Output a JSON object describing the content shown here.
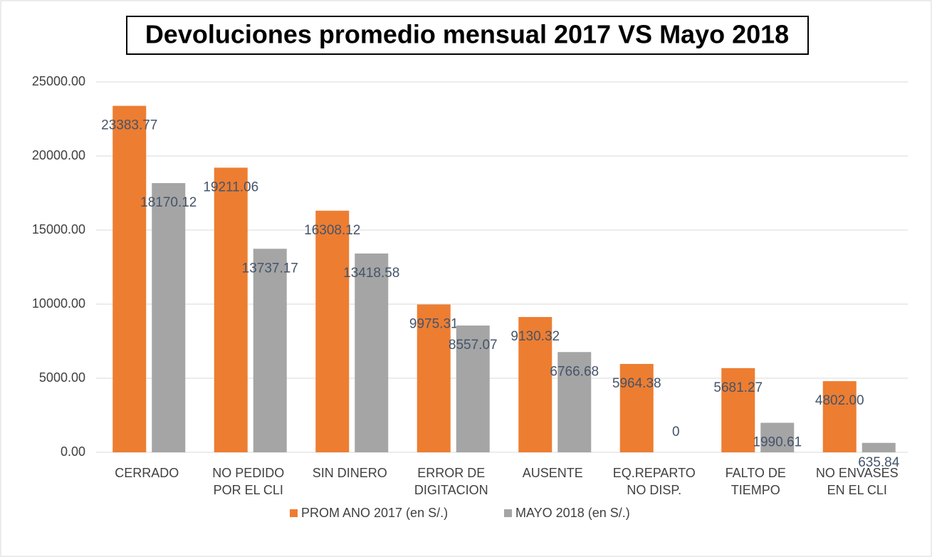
{
  "chart_data": {
    "type": "bar",
    "title": "Devoluciones promedio mensual 2017 VS Mayo 2018",
    "categories": [
      "CERRADO",
      "NO PEDIDO\nPOR EL CLI",
      "SIN DINERO",
      "ERROR DE\nDIGITACION",
      "AUSENTE",
      "EQ.REPARTO\nNO DISP.",
      "FALTO DE\nTIEMPO",
      "NO ENVASES\nEN EL CLI"
    ],
    "series": [
      {
        "name": "PROM ANO 2017 (en S/.)",
        "color": "#ed7d31",
        "values": [
          23383.77,
          19211.06,
          16308.12,
          9975.31,
          9130.32,
          5964.38,
          5681.27,
          4802.0
        ],
        "value_labels": [
          "23383.77",
          "19211.06",
          "16308.12",
          "9975.31",
          "9130.32",
          "5964.38",
          "5681.27",
          "4802.00"
        ]
      },
      {
        "name": "MAYO 2018 (en S/.)",
        "color": "#a5a5a5",
        "values": [
          18170.12,
          13737.17,
          13418.58,
          8557.07,
          6766.68,
          0,
          1990.61,
          635.84
        ],
        "value_labels": [
          "18170.12",
          "13737.17",
          "13418.58",
          "8557.07",
          "6766.68",
          "0",
          "1990.61",
          "635.84"
        ]
      }
    ],
    "ylim": [
      0,
      25000
    ],
    "yticks": [
      {
        "value": 0,
        "label": "0.00"
      },
      {
        "value": 5000,
        "label": "5000.00"
      },
      {
        "value": 10000,
        "label": "10000.00"
      },
      {
        "value": 15000,
        "label": "15000.00"
      },
      {
        "value": 20000,
        "label": "20000.00"
      },
      {
        "value": 25000,
        "label": "25000.00"
      }
    ],
    "grid": true,
    "legend": "bottom"
  }
}
